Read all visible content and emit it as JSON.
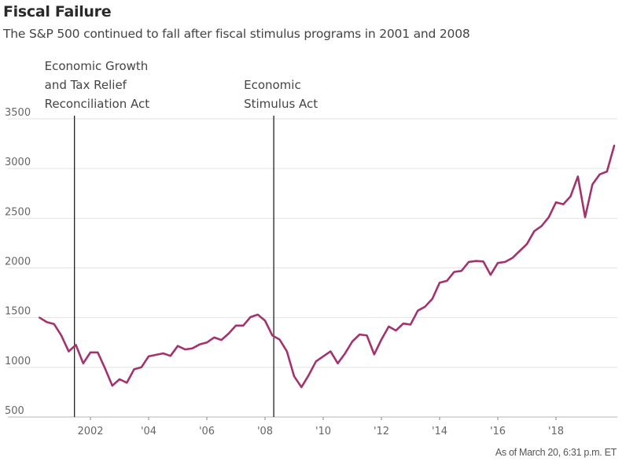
{
  "title": "Fiscal Failure",
  "subtitle": "The S&P 500 continued to fall after fiscal stimulus programs in 2001 and 2008",
  "footer": "As of March 20, 6:31 p.m. ET",
  "chart_data": {
    "type": "line",
    "title": "Fiscal Failure",
    "subtitle": "The S&P 500 continued to fall after fiscal stimulus programs in 2001 and 2008",
    "xlabel": "",
    "ylabel": "",
    "ylim": [
      500,
      3500
    ],
    "xlim": [
      2000.0,
      2020.0
    ],
    "grid": true,
    "y_ticks": [
      500,
      1000,
      1500,
      2000,
      2500,
      3000,
      3500
    ],
    "y_tick_labels": [
      "500",
      "1000",
      "1500",
      "2000",
      "2500",
      "3000",
      "3500"
    ],
    "x_ticks": [
      2002,
      2004,
      2006,
      2008,
      2010,
      2012,
      2014,
      2016,
      2018
    ],
    "x_tick_labels": [
      "2002",
      "'04",
      "'06",
      "'08",
      "'10",
      "'12",
      "'14",
      "'16",
      "'18"
    ],
    "line_color": "#a3336e",
    "annotations": [
      {
        "x": 2001.45,
        "lines": [
          "Economic Growth",
          "and Tax Relief",
          "Reconciliation Act"
        ]
      },
      {
        "x": 2008.3,
        "lines": [
          "Economic",
          "Stimulus Act"
        ]
      }
    ],
    "series": [
      {
        "name": "S&P 500",
        "x": [
          2000.25,
          2000.5,
          2000.75,
          2001.0,
          2001.25,
          2001.5,
          2001.75,
          2002.0,
          2002.25,
          2002.5,
          2002.75,
          2003.0,
          2003.25,
          2003.5,
          2003.75,
          2004.0,
          2004.25,
          2004.5,
          2004.75,
          2005.0,
          2005.25,
          2005.5,
          2005.75,
          2006.0,
          2006.25,
          2006.5,
          2006.75,
          2007.0,
          2007.25,
          2007.5,
          2007.75,
          2008.0,
          2008.25,
          2008.5,
          2008.75,
          2009.0,
          2009.25,
          2009.5,
          2009.75,
          2010.0,
          2010.25,
          2010.5,
          2010.75,
          2011.0,
          2011.25,
          2011.5,
          2011.75,
          2012.0,
          2012.25,
          2012.5,
          2012.75,
          2013.0,
          2013.25,
          2013.5,
          2013.75,
          2014.0,
          2014.25,
          2014.5,
          2014.75,
          2015.0,
          2015.25,
          2015.5,
          2015.75,
          2016.0,
          2016.25,
          2016.5,
          2016.75,
          2017.0,
          2017.25,
          2017.5,
          2017.75,
          2018.0,
          2018.25,
          2018.5,
          2018.75,
          2019.0,
          2019.25,
          2019.5,
          2019.75,
          2020.0
        ],
        "values": [
          1500,
          1455,
          1435,
          1320,
          1160,
          1225,
          1040,
          1150,
          1150,
          990,
          815,
          880,
          845,
          980,
          1000,
          1110,
          1125,
          1140,
          1115,
          1215,
          1180,
          1190,
          1230,
          1250,
          1300,
          1275,
          1340,
          1420,
          1420,
          1505,
          1530,
          1470,
          1320,
          1280,
          1160,
          910,
          800,
          920,
          1060,
          1110,
          1160,
          1040,
          1140,
          1260,
          1330,
          1320,
          1130,
          1280,
          1410,
          1370,
          1440,
          1430,
          1570,
          1610,
          1690,
          1850,
          1870,
          1960,
          1970,
          2060,
          2070,
          2065,
          1930,
          2050,
          2060,
          2100,
          2170,
          2240,
          2370,
          2420,
          2510,
          2660,
          2640,
          2720,
          2920,
          2510,
          2840,
          2940,
          2970,
          3230
        ]
      }
    ]
  }
}
